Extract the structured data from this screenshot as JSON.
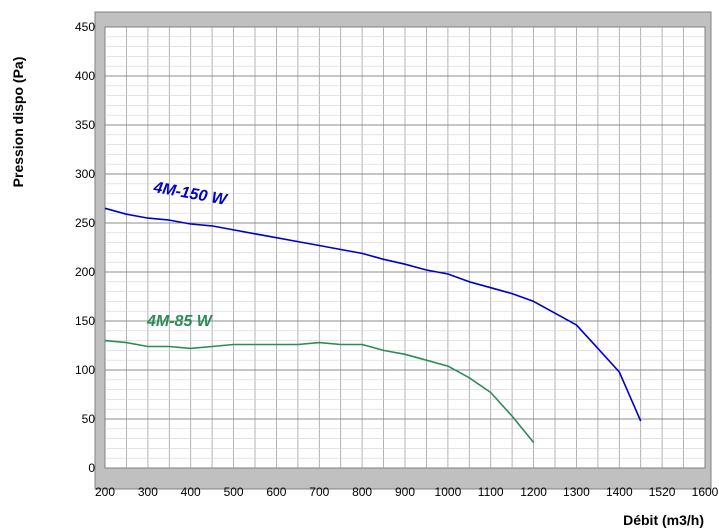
{
  "chart_data": {
    "type": "line",
    "title": "",
    "xlabel": "Débit (m3/h)",
    "ylabel": "Pression dispo (Pa)",
    "xlim": [
      200,
      1600
    ],
    "ylim": [
      0,
      450
    ],
    "x_ticks": [
      200,
      300,
      400,
      500,
      600,
      700,
      800,
      900,
      1000,
      1100,
      1200,
      1300,
      1400,
      1520,
      1600
    ],
    "y_ticks": [
      0,
      50,
      100,
      150,
      200,
      250,
      300,
      350,
      400,
      450
    ],
    "grid": true,
    "legend": "none",
    "series": [
      {
        "name": "4M-150 W",
        "color": "#0000cc",
        "x": [
          200,
          250,
          300,
          350,
          400,
          450,
          500,
          550,
          600,
          650,
          700,
          750,
          800,
          850,
          900,
          950,
          1000,
          1050,
          1100,
          1150,
          1200,
          1250,
          1300,
          1350,
          1400,
          1450
        ],
        "y": [
          265,
          259,
          255,
          253,
          249,
          247,
          243,
          239,
          235,
          231,
          227,
          223,
          219,
          213,
          208,
          202,
          198,
          190,
          184,
          178,
          170,
          158,
          146,
          122,
          98,
          48
        ]
      },
      {
        "name": "4M-85 W",
        "color": "#2e8b57",
        "x": [
          200,
          250,
          300,
          350,
          400,
          450,
          500,
          550,
          600,
          650,
          700,
          750,
          800,
          850,
          900,
          950,
          1000,
          1050,
          1100,
          1150,
          1200
        ],
        "y": [
          130,
          128,
          124,
          124,
          122,
          124,
          126,
          126,
          126,
          126,
          128,
          126,
          126,
          120,
          116,
          110,
          104,
          92,
          77,
          53,
          26
        ]
      }
    ]
  }
}
